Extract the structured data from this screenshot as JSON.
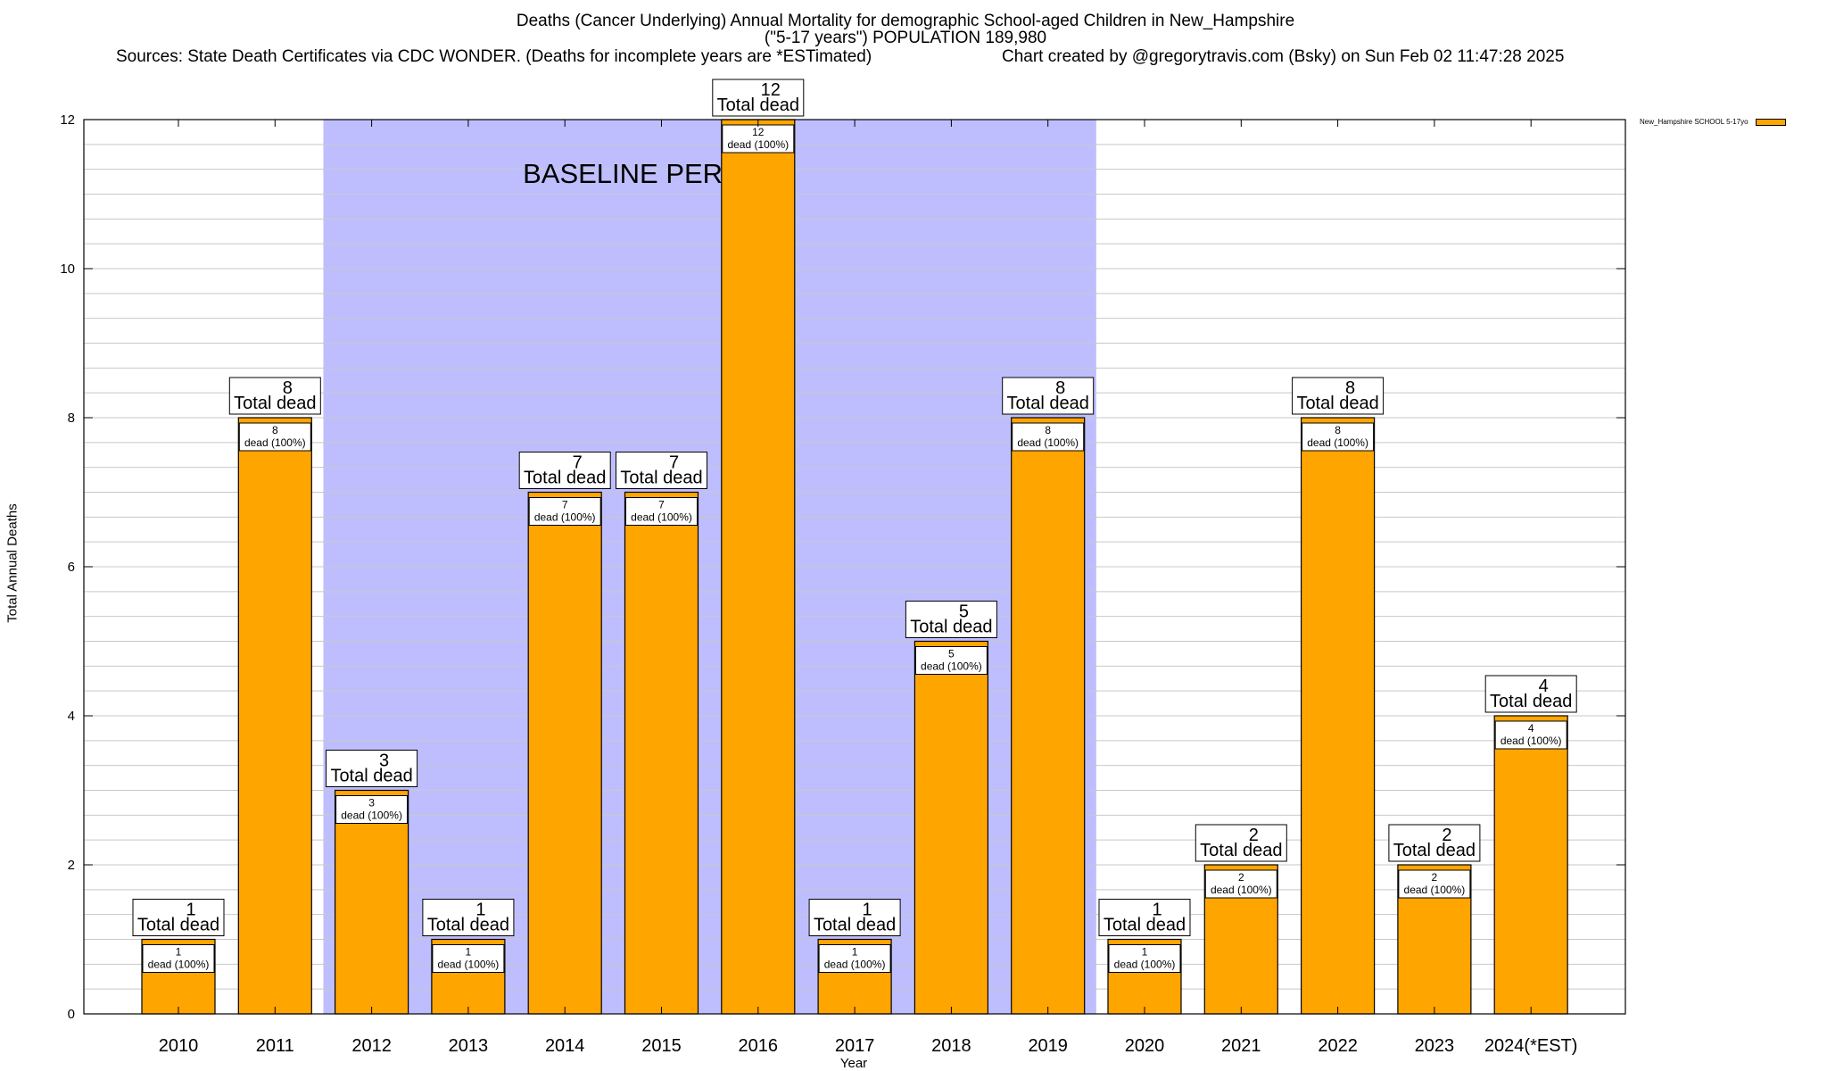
{
  "header": {
    "title_line1": "Deaths (Cancer Underlying) Annual Mortality for demographic School-aged Children in New_Hampshire",
    "title_line2": "(\"5-17 years\") POPULATION 189,980",
    "sources": "Sources: State Death Certificates via CDC WONDER. (Deaths for incomplete years are *ESTimated)",
    "credit": "Chart created by @gregorytravis.com (Bsky) on Sun Feb 02 11:47:28 2025"
  },
  "colors": {
    "bar": "#FFA500",
    "baseline_band": "#BEBEFF",
    "grid": "#C8C8C8"
  },
  "chart_data": {
    "type": "bar",
    "xlabel": "Year",
    "ylabel": "Total Annual Deaths",
    "ylim": [
      0,
      12
    ],
    "yticks": [
      0,
      2,
      4,
      6,
      8,
      10,
      12
    ],
    "categories": [
      "2010",
      "2011",
      "2012",
      "2013",
      "2014",
      "2015",
      "2016",
      "2017",
      "2018",
      "2019",
      "2020",
      "2021",
      "2022",
      "2023",
      "2024(*EST)"
    ],
    "series": [
      {
        "name": "New_Hampshire SCHOOL 5-17yo",
        "values": [
          1,
          8,
          3,
          1,
          7,
          7,
          12,
          1,
          5,
          8,
          1,
          2,
          8,
          2,
          4
        ]
      }
    ],
    "total_label_text": "Total dead",
    "inner_label_text": "dead (100%)",
    "baseline_period": {
      "label": "BASELINE PERIOD",
      "from_category": "2012",
      "to_category": "2019"
    },
    "legend_position": "top-right",
    "grid": true
  }
}
